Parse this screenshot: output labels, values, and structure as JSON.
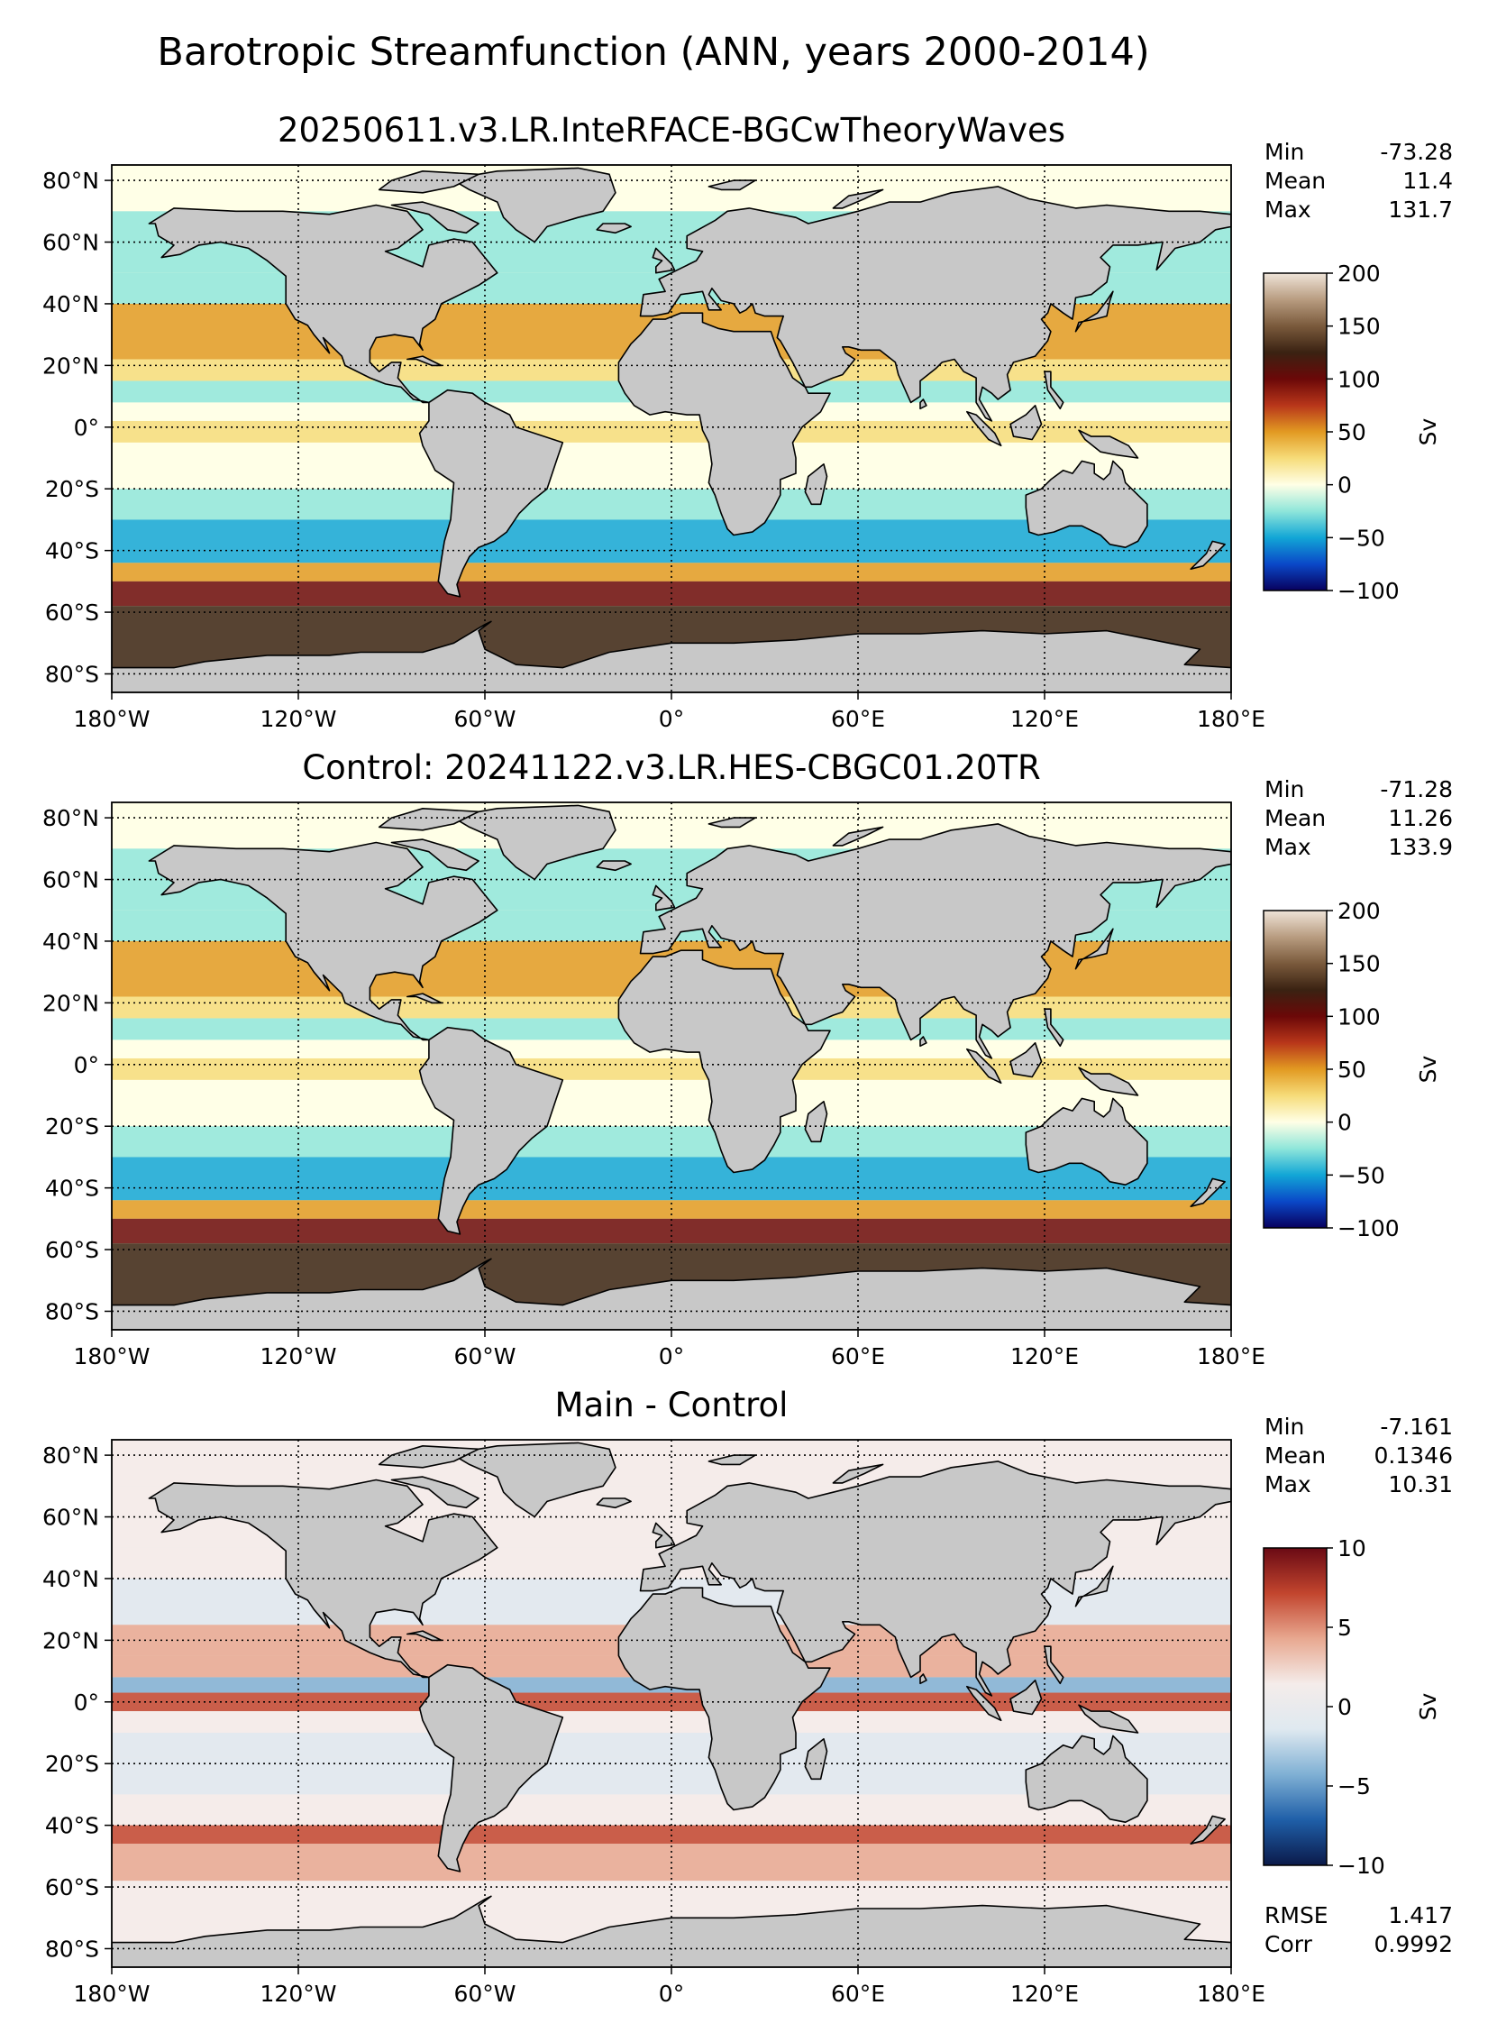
{
  "figure_title": "Barotropic Streamfunction (ANN, years 2000-2014)",
  "lon_ticks": [
    "180°W",
    "120°W",
    "60°W",
    "0°",
    "60°E",
    "120°E",
    "180°E"
  ],
  "lat_ticks": [
    "80°N",
    "60°N",
    "40°N",
    "20°N",
    "0°",
    "20°S",
    "40°S",
    "60°S",
    "80°S"
  ],
  "panels": [
    {
      "title": "20250611.v3.LR.InteRFACE-BGCwTheoryWaves",
      "stats": [
        {
          "label": "Min",
          "value": "-73.28"
        },
        {
          "label": "Mean",
          "value": "11.4"
        },
        {
          "label": "Max",
          "value": "131.7"
        }
      ],
      "colorbar": {
        "label": "Sv",
        "ticks": [
          "200",
          "150",
          "100",
          "50",
          "0",
          "−50",
          "−100"
        ],
        "range": [
          -100,
          200
        ],
        "colors": [
          "#08005e",
          "#0a48c8",
          "#12a6d6",
          "#8fe6da",
          "#ffffe6",
          "#f6dc7a",
          "#e29a22",
          "#b8361a",
          "#6b0808",
          "#3a2212",
          "#7a5a3c",
          "#b89c80",
          "#efe4d8"
        ]
      },
      "bottom_stats": []
    },
    {
      "title": "Control: 20241122.v3.LR.HES-CBGC01.20TR",
      "stats": [
        {
          "label": "Min",
          "value": "-71.28"
        },
        {
          "label": "Mean",
          "value": "11.26"
        },
        {
          "label": "Max",
          "value": "133.9"
        }
      ],
      "colorbar": {
        "label": "Sv",
        "ticks": [
          "200",
          "150",
          "100",
          "50",
          "0",
          "−50",
          "−100"
        ],
        "range": [
          -100,
          200
        ],
        "colors": [
          "#08005e",
          "#0a48c8",
          "#12a6d6",
          "#8fe6da",
          "#ffffe6",
          "#f6dc7a",
          "#e29a22",
          "#b8361a",
          "#6b0808",
          "#3a2212",
          "#7a5a3c",
          "#b89c80",
          "#efe4d8"
        ]
      },
      "bottom_stats": []
    },
    {
      "title": "Main - Control",
      "stats": [
        {
          "label": "Min",
          "value": "-7.161"
        },
        {
          "label": "Mean",
          "value": "0.1346"
        },
        {
          "label": "Max",
          "value": "10.31"
        }
      ],
      "colorbar": {
        "label": "Sv",
        "ticks": [
          "10",
          "5",
          "0",
          "−5",
          "−10"
        ],
        "range": [
          -10,
          10
        ],
        "colors": [
          "#0b1a4a",
          "#1f5fa8",
          "#7fb0d4",
          "#dfe9f0",
          "#f4ecea",
          "#e8a890",
          "#c2452e",
          "#6a0a14"
        ]
      },
      "bottom_stats": [
        {
          "label": "RMSE",
          "value": "1.417"
        },
        {
          "label": "Corr",
          "value": "0.9992"
        }
      ]
    }
  ],
  "colors": {
    "land": "#c8c8c8",
    "frame": "#000000"
  }
}
